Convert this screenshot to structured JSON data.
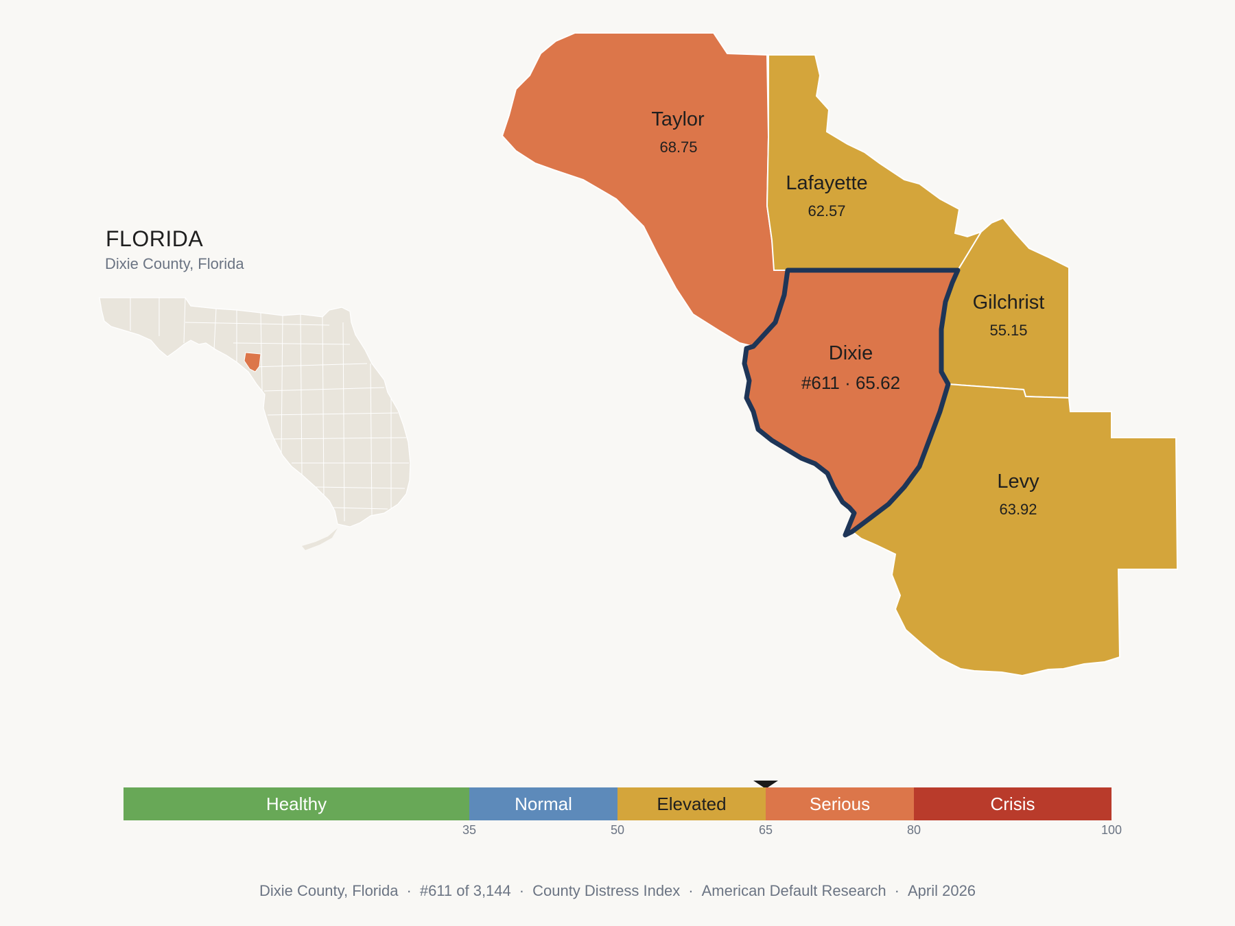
{
  "inset": {
    "title": "FLORIDA",
    "subtitle": "Dixie County, Florida"
  },
  "counties": {
    "taylor": {
      "name": "Taylor",
      "value": "68.75",
      "color": "#dc764a"
    },
    "lafayette": {
      "name": "Lafayette",
      "value": "62.57",
      "color": "#d4a53b"
    },
    "gilchrist": {
      "name": "Gilchrist",
      "value": "55.15",
      "color": "#d4a53b"
    },
    "dixie": {
      "name": "Dixie",
      "value": "#611 · 65.62",
      "color": "#dc764a",
      "outline": "#1e3557"
    },
    "levy": {
      "name": "Levy",
      "value": "63.92",
      "color": "#d4a53b"
    }
  },
  "scale": {
    "min": 0,
    "max": 100,
    "marker_value": 65.62,
    "bands": [
      {
        "label": "Healthy",
        "from": 0,
        "to": 35,
        "color": "#68a857",
        "text_color": "#ffffff"
      },
      {
        "label": "Normal",
        "from": 35,
        "to": 50,
        "color": "#5d8aba",
        "text_color": "#ffffff"
      },
      {
        "label": "Elevated",
        "from": 50,
        "to": 65,
        "color": "#d4a53b",
        "text_color": "#1f1f1f"
      },
      {
        "label": "Serious",
        "from": 65,
        "to": 80,
        "color": "#dc764a",
        "text_color": "#ffffff"
      },
      {
        "label": "Crisis",
        "from": 80,
        "to": 100,
        "color": "#b93b2b",
        "text_color": "#ffffff"
      }
    ],
    "ticks": [
      "35",
      "50",
      "65",
      "80",
      "100"
    ]
  },
  "footer": {
    "county": "Dixie County, Florida",
    "rank": "#611 of 3,144",
    "index": "County Distress Index",
    "source": "American Default Research",
    "date": "April 2026"
  }
}
